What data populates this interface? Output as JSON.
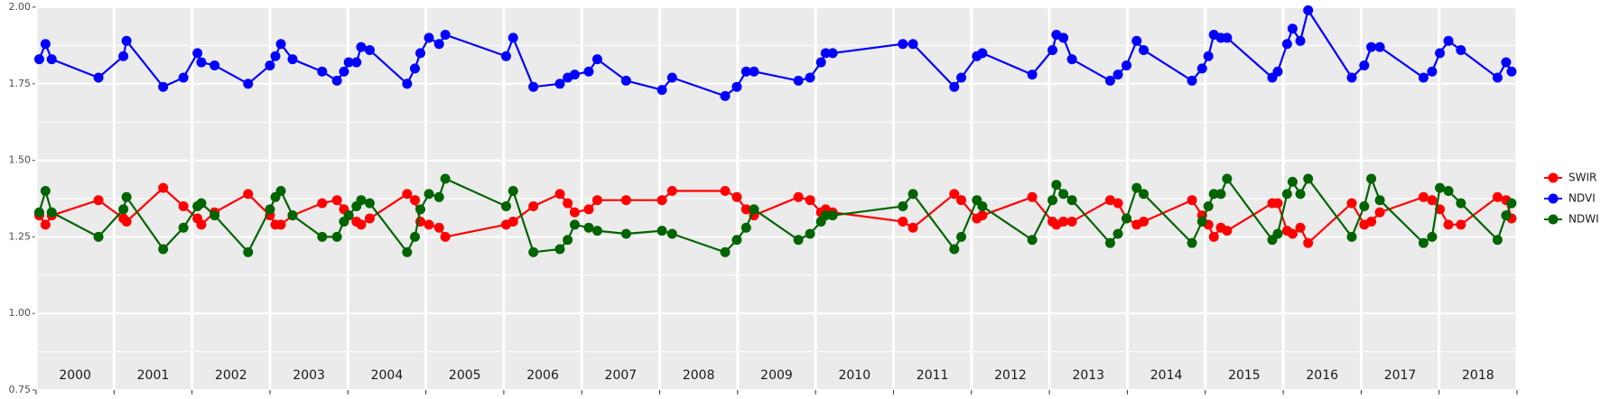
{
  "chart_data": {
    "type": "line",
    "x": [
      2000.04,
      2000.12,
      2000.2,
      2000.8,
      2001.12,
      2001.16,
      2001.63,
      2001.89,
      2002.07,
      2002.12,
      2002.29,
      2002.72,
      2003.0,
      2003.07,
      2003.14,
      2003.29,
      2003.67,
      2003.86,
      2003.95,
      2004.01,
      2004.11,
      2004.17,
      2004.28,
      2004.76,
      2004.86,
      2004.93,
      2005.04,
      2005.17,
      2005.25,
      2006.03,
      2006.12,
      2006.38,
      2006.72,
      2006.82,
      2006.91,
      2007.09,
      2007.2,
      2007.57,
      2008.03,
      2008.16,
      2008.84,
      2008.99,
      2009.11,
      2009.21,
      2009.78,
      2009.93,
      2010.07,
      2010.13,
      2010.22,
      2011.12,
      2011.25,
      2011.78,
      2011.87,
      2012.07,
      2012.14,
      2012.78,
      2013.04,
      2013.09,
      2013.18,
      2013.29,
      2013.78,
      2013.88,
      2013.99,
      2014.12,
      2014.21,
      2014.83,
      2014.96,
      2015.04,
      2015.11,
      2015.2,
      2015.28,
      2015.86,
      2015.93,
      2016.05,
      2016.12,
      2016.22,
      2016.32,
      2016.88,
      2017.04,
      2017.13,
      2017.24,
      2017.8,
      2017.91,
      2018.01,
      2018.12,
      2018.28,
      2018.75,
      2018.86,
      2018.93
    ],
    "series": [
      {
        "name": "SWIR",
        "color": "#ff0000",
        "values": [
          1.32,
          1.29,
          1.32,
          1.37,
          1.31,
          1.3,
          1.41,
          1.35,
          1.31,
          1.29,
          1.33,
          1.39,
          1.32,
          1.29,
          1.29,
          1.32,
          1.36,
          1.37,
          1.34,
          1.32,
          1.3,
          1.29,
          1.31,
          1.39,
          1.37,
          1.3,
          1.29,
          1.28,
          1.25,
          1.29,
          1.3,
          1.35,
          1.39,
          1.36,
          1.33,
          1.34,
          1.37,
          1.37,
          1.37,
          1.4,
          1.4,
          1.38,
          1.34,
          1.32,
          1.38,
          1.37,
          1.33,
          1.34,
          1.33,
          1.3,
          1.28,
          1.39,
          1.37,
          1.31,
          1.32,
          1.38,
          1.3,
          1.29,
          1.3,
          1.3,
          1.37,
          1.36,
          1.31,
          1.29,
          1.3,
          1.37,
          1.32,
          1.29,
          1.25,
          1.28,
          1.27,
          1.36,
          1.36,
          1.27,
          1.26,
          1.28,
          1.23,
          1.36,
          1.29,
          1.3,
          1.33,
          1.38,
          1.37,
          1.34,
          1.29,
          1.29,
          1.38,
          1.37,
          1.31
        ]
      },
      {
        "name": "NDVI",
        "color": "#0000ff",
        "values": [
          1.83,
          1.88,
          1.83,
          1.77,
          1.84,
          1.89,
          1.74,
          1.77,
          1.85,
          1.82,
          1.81,
          1.75,
          1.81,
          1.84,
          1.88,
          1.83,
          1.79,
          1.76,
          1.79,
          1.82,
          1.82,
          1.87,
          1.86,
          1.75,
          1.8,
          1.85,
          1.9,
          1.88,
          1.91,
          1.84,
          1.9,
          1.74,
          1.75,
          1.77,
          1.78,
          1.79,
          1.83,
          1.76,
          1.73,
          1.77,
          1.71,
          1.74,
          1.79,
          1.79,
          1.76,
          1.77,
          1.82,
          1.85,
          1.85,
          1.88,
          1.88,
          1.74,
          1.77,
          1.84,
          1.85,
          1.78,
          1.86,
          1.91,
          1.9,
          1.83,
          1.76,
          1.78,
          1.81,
          1.89,
          1.86,
          1.76,
          1.8,
          1.84,
          1.91,
          1.9,
          1.9,
          1.77,
          1.79,
          1.88,
          1.93,
          1.89,
          1.99,
          1.77,
          1.81,
          1.87,
          1.87,
          1.77,
          1.79,
          1.85,
          1.89,
          1.86,
          1.77,
          1.82,
          1.79
        ]
      },
      {
        "name": "NDWI",
        "color": "#006400",
        "values": [
          1.33,
          1.4,
          1.33,
          1.25,
          1.34,
          1.38,
          1.21,
          1.28,
          1.35,
          1.36,
          1.32,
          1.2,
          1.34,
          1.38,
          1.4,
          1.32,
          1.25,
          1.25,
          1.3,
          1.32,
          1.35,
          1.37,
          1.36,
          1.2,
          1.25,
          1.34,
          1.39,
          1.38,
          1.44,
          1.35,
          1.4,
          1.2,
          1.21,
          1.24,
          1.29,
          1.28,
          1.27,
          1.26,
          1.27,
          1.26,
          1.2,
          1.24,
          1.28,
          1.34,
          1.24,
          1.26,
          1.3,
          1.32,
          1.32,
          1.35,
          1.39,
          1.21,
          1.25,
          1.37,
          1.35,
          1.24,
          1.37,
          1.42,
          1.39,
          1.37,
          1.23,
          1.26,
          1.31,
          1.41,
          1.39,
          1.23,
          1.3,
          1.35,
          1.39,
          1.39,
          1.44,
          1.24,
          1.26,
          1.39,
          1.43,
          1.39,
          1.44,
          1.25,
          1.35,
          1.44,
          1.37,
          1.23,
          1.25,
          1.41,
          1.4,
          1.36,
          1.24,
          1.32,
          1.36
        ]
      }
    ],
    "xlim": [
      2000,
      2019
    ],
    "xticks": [
      2000,
      2001,
      2002,
      2003,
      2004,
      2005,
      2006,
      2007,
      2008,
      2009,
      2010,
      2011,
      2012,
      2013,
      2014,
      2015,
      2016,
      2017,
      2018,
      2019
    ],
    "ylim": [
      0.75,
      2
    ],
    "yticks": [
      {
        "value": 0.75,
        "label": "0.75"
      },
      {
        "value": 1,
        "label": "1.00"
      },
      {
        "value": 1.25,
        "label": "1.25"
      },
      {
        "value": 1.5,
        "label": "1.50"
      },
      {
        "value": 1.75,
        "label": "1.75"
      },
      {
        "value": 2,
        "label": "2.00"
      }
    ],
    "grid": true,
    "legend": "right"
  }
}
